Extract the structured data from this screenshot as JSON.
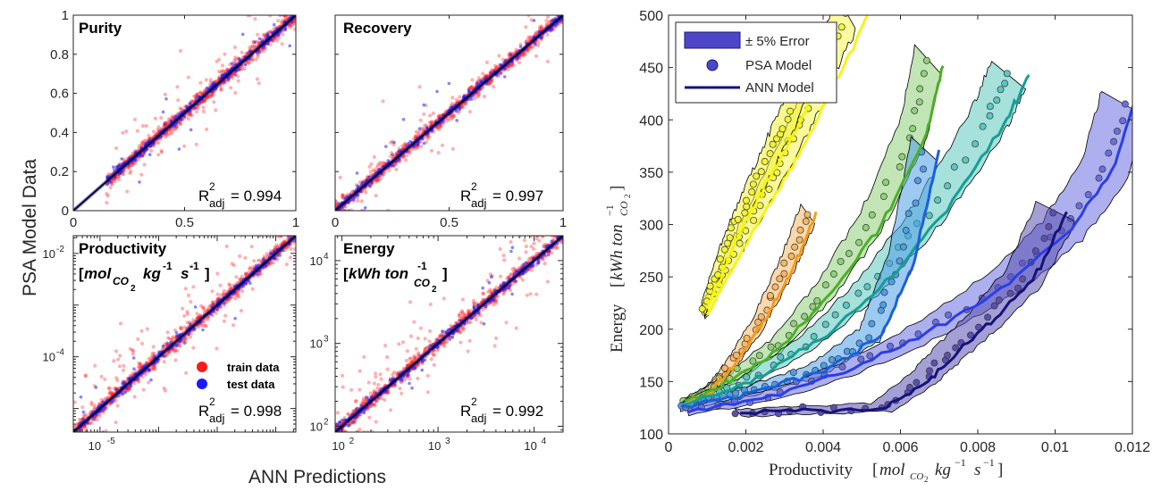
{
  "chart_data": [
    {
      "type": "scatter",
      "title": "Purity",
      "xlim": [
        0,
        1
      ],
      "ylim": [
        0,
        1
      ],
      "x_ticks": [
        "0",
        "0.5",
        "1"
      ],
      "y_ticks": [
        "0",
        "0.2",
        "0.4",
        "0.6",
        "0.8",
        "1"
      ],
      "r2_text": "= 0.994",
      "series": [
        {
          "name": "train data",
          "color": "#ff0000"
        },
        {
          "name": "test data",
          "color": "#0000ff"
        }
      ]
    },
    {
      "type": "scatter",
      "title": "Recovery",
      "xlim": [
        0,
        1
      ],
      "ylim": [
        0,
        1
      ],
      "x_ticks": [
        "0",
        "0.5",
        "1"
      ],
      "y_ticks": [
        "0",
        "0.2",
        "0.4",
        "0.6",
        "0.8",
        "1"
      ],
      "r2_text": "= 0.997"
    },
    {
      "type": "scatter",
      "title": "Productivity",
      "log_scale": true,
      "xlim": [
        3.5e-06,
        0.022
      ],
      "ylim": [
        3.5e-06,
        0.022
      ],
      "x_ticks": [
        "10",
        "-5"
      ],
      "y_ticks": [
        [
          "10",
          "-4"
        ],
        [
          "10",
          "-2"
        ]
      ],
      "r2_text": "= 0.998",
      "legend": {
        "train": "train data",
        "test": "test data",
        "placement": "bottom-right"
      }
    },
    {
      "type": "scatter",
      "title": "Energy",
      "log_scale": true,
      "xlim": [
        85,
        20000
      ],
      "ylim": [
        85,
        20000
      ],
      "x_ticks": [
        [
          "10",
          "2"
        ],
        [
          "10",
          "3"
        ],
        [
          "10",
          "4"
        ]
      ],
      "y_ticks": [
        [
          "10",
          "2"
        ],
        [
          "10",
          "3"
        ],
        [
          "10",
          "4"
        ]
      ],
      "r2_text": "= 0.992"
    },
    {
      "type": "line",
      "xlim": [
        0,
        0.012
      ],
      "ylim": [
        100,
        500
      ],
      "x_ticks": [
        "0",
        "0.002",
        "0.004",
        "0.006",
        "0.008",
        "0.01",
        "0.012"
      ],
      "y_ticks": [
        "100",
        "150",
        "200",
        "250",
        "300",
        "350",
        "400",
        "450",
        "500"
      ],
      "legend": {
        "band": "± 5% Error",
        "psa": "PSA Model",
        "ann": "ANN Model",
        "placement": "top-left"
      },
      "series": [
        {
          "color": "#f5f515",
          "fill": "#f4f44c",
          "x": [
            0.0009,
            0.0015,
            0.0022,
            0.003,
            0.0038,
            0.0046
          ],
          "y": [
            215,
            260,
            310,
            365,
            430,
            500
          ]
        },
        {
          "color": "#f5f50c",
          "fill": "#f3f332",
          "x": [
            0.0009,
            0.0015,
            0.0022,
            0.003,
            0.0038
          ],
          "y": [
            220,
            280,
            335,
            395,
            470
          ]
        },
        {
          "color": "#f59a1c",
          "fill": "#f5b866",
          "x": [
            0.0004,
            0.001,
            0.0016,
            0.0023,
            0.003,
            0.0036
          ],
          "y": [
            128,
            140,
            165,
            205,
            255,
            310
          ]
        },
        {
          "color": "#4caf27",
          "fill": "#8fd07a",
          "x": [
            0.0004,
            0.0015,
            0.0028,
            0.004,
            0.0052,
            0.0063,
            0.0067
          ],
          "y": [
            130,
            150,
            185,
            235,
            300,
            385,
            455
          ]
        },
        {
          "color": "#159e95",
          "fill": "#5cc8c0",
          "x": [
            0.0004,
            0.002,
            0.0037,
            0.0053,
            0.0068,
            0.0082,
            0.0088
          ],
          "y": [
            128,
            150,
            190,
            245,
            315,
            395,
            443
          ]
        },
        {
          "color": "#1a5fdc",
          "fill": "#4d9ee8",
          "x": [
            0.0003,
            0.002,
            0.0038,
            0.0052,
            0.006,
            0.0066
          ],
          "y": [
            125,
            140,
            160,
            195,
            265,
            370
          ]
        },
        {
          "color": "#2a3ee6",
          "fill": "#6a6ee0",
          "x": [
            0.0005,
            0.0025,
            0.0045,
            0.0065,
            0.0085,
            0.0102,
            0.0113,
            0.0118
          ],
          "y": [
            122,
            135,
            160,
            195,
            240,
            295,
            355,
            415
          ]
        },
        {
          "color": "#16127a",
          "fill": "#5a50b0",
          "x": [
            0.0018,
            0.0035,
            0.0055,
            0.0065,
            0.0072,
            0.0082,
            0.0092,
            0.01
          ],
          "y": [
            120,
            123,
            125,
            150,
            175,
            210,
            250,
            310
          ]
        }
      ]
    }
  ],
  "labels": {
    "left_ylabel": "PSA Model Data",
    "left_xlabel": "ANN Predictions",
    "prod_unit": {
      "open": "[",
      "mol": "mol",
      "co2": "CO",
      "co2_sub": "2",
      "kg": "kg",
      "exp": "-1",
      "s": "s",
      "close": "]"
    },
    "energy_unit": {
      "open": "[",
      "kwh": "kWh ton",
      "exp": "-1",
      "co2": "CO",
      "co2_sub": "2",
      "close": "]"
    },
    "r2_prefix": "R",
    "r2_sup": "2",
    "r2_sub": "adj",
    "right_ylabel": "Energy",
    "right_ylabel_unit": {
      "open": "[",
      "kwh": "kWh ton",
      "exp": "−1",
      "sub": "CO",
      "sub2": "2",
      "close": "]"
    },
    "right_xlabel": "Productivity",
    "right_xlabel_unit": {
      "open": "[",
      "mol": "mol",
      "sub": "CO",
      "sub2": "2",
      "kg": "kg",
      "exp1": "−1",
      "s": "s",
      "exp2": "−1",
      "close": "]"
    }
  }
}
